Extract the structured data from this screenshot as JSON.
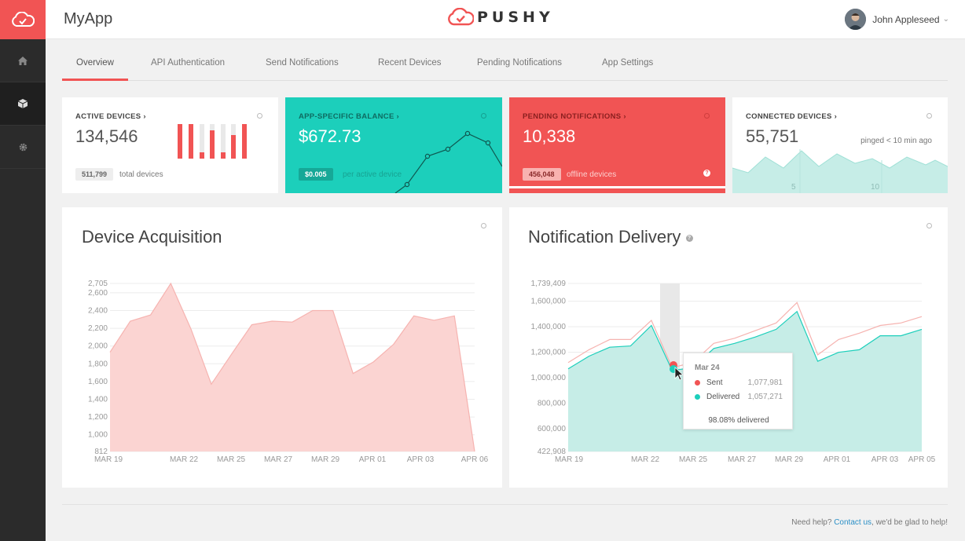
{
  "app": {
    "name": "MyApp",
    "brand": "PUSHY"
  },
  "user": {
    "name": "John Appleseed"
  },
  "sidebar": {
    "items": [
      {
        "icon": "home-icon"
      },
      {
        "icon": "cube-icon"
      },
      {
        "icon": "gear-icon"
      }
    ]
  },
  "tabs": [
    "Overview",
    "API Authentication",
    "Send Notifications",
    "Recent Devices",
    "Pending Notifications",
    "App Settings"
  ],
  "cards": {
    "active": {
      "title": "ACTIVE DEVICES",
      "value": "134,546",
      "pill": "511,799",
      "pill_label": "total devices"
    },
    "balance": {
      "title": "APP-SPECIFIC BALANCE",
      "value": "$672.73",
      "pill": "$0.005",
      "pill_label": "per active device"
    },
    "pending": {
      "title": "PENDING NOTIFICATIONS",
      "value": "10,338",
      "pill": "456,048",
      "pill_label": "offline devices"
    },
    "connected": {
      "title": "CONNECTED DEVICES",
      "value": "55,751",
      "note": "pinged < 10 min ago",
      "ticks": [
        "5",
        "10"
      ]
    }
  },
  "colors": {
    "accent": "#f15454",
    "teal": "#1ccfbb",
    "teal_light": "#c6ede7",
    "pink": "#f9c5c3"
  },
  "chart_data": [
    {
      "type": "area",
      "title": "Device Acquisition",
      "ylim": [
        812,
        2705
      ],
      "yticks": [
        "2,705",
        "2,600",
        "2,400",
        "2,200",
        "2,000",
        "1,800",
        "1,600",
        "1,400",
        "1,200",
        "1,000",
        "812"
      ],
      "xticks": [
        "MAR 19",
        "MAR 22",
        "MAR 25",
        "MAR 27",
        "MAR 29",
        "APR 01",
        "APR 03",
        "APR 06"
      ],
      "series": [
        {
          "values": [
            1930,
            2280,
            2350,
            2705,
            2190,
            1570,
            1910,
            2240,
            2280,
            2270,
            2400,
            2400,
            1690,
            1820,
            2020,
            2340,
            2290,
            2340,
            812
          ]
        }
      ]
    },
    {
      "type": "area",
      "title": "Notification Delivery",
      "ylim": [
        422908,
        1739409
      ],
      "yticks": [
        "1,739,409",
        "1,600,000",
        "1,400,000",
        "1,200,000",
        "1,000,000",
        "800,000",
        "600,000",
        "422,908"
      ],
      "xticks": [
        "MAR 19",
        "MAR 22",
        "MAR 25",
        "MAR 27",
        "MAR 29",
        "APR 01",
        "APR 03",
        "APR 05"
      ],
      "series": [
        {
          "name": "Sent",
          "values": [
            1120,
            1220,
            1300,
            1300,
            1450,
            1080,
            1120,
            1270,
            1310,
            1370,
            1430,
            1590,
            1180,
            1300,
            1350,
            1410,
            1430,
            1480
          ]
        },
        {
          "name": "Delivered",
          "values": [
            1070,
            1170,
            1240,
            1250,
            1410,
            1057,
            1080,
            1230,
            1270,
            1320,
            1380,
            1520,
            1130,
            1200,
            1220,
            1330,
            1330,
            1380
          ]
        }
      ],
      "tooltip": {
        "date": "Mar 24",
        "sent_label": "Sent",
        "sent": "1,077,981",
        "delivered_label": "Delivered",
        "delivered": "1,057,271",
        "summary": "98.08% delivered"
      }
    }
  ],
  "footer": {
    "text": "Need help? ",
    "link": "Contact us",
    "suffix": ", we'd be glad to help!"
  }
}
